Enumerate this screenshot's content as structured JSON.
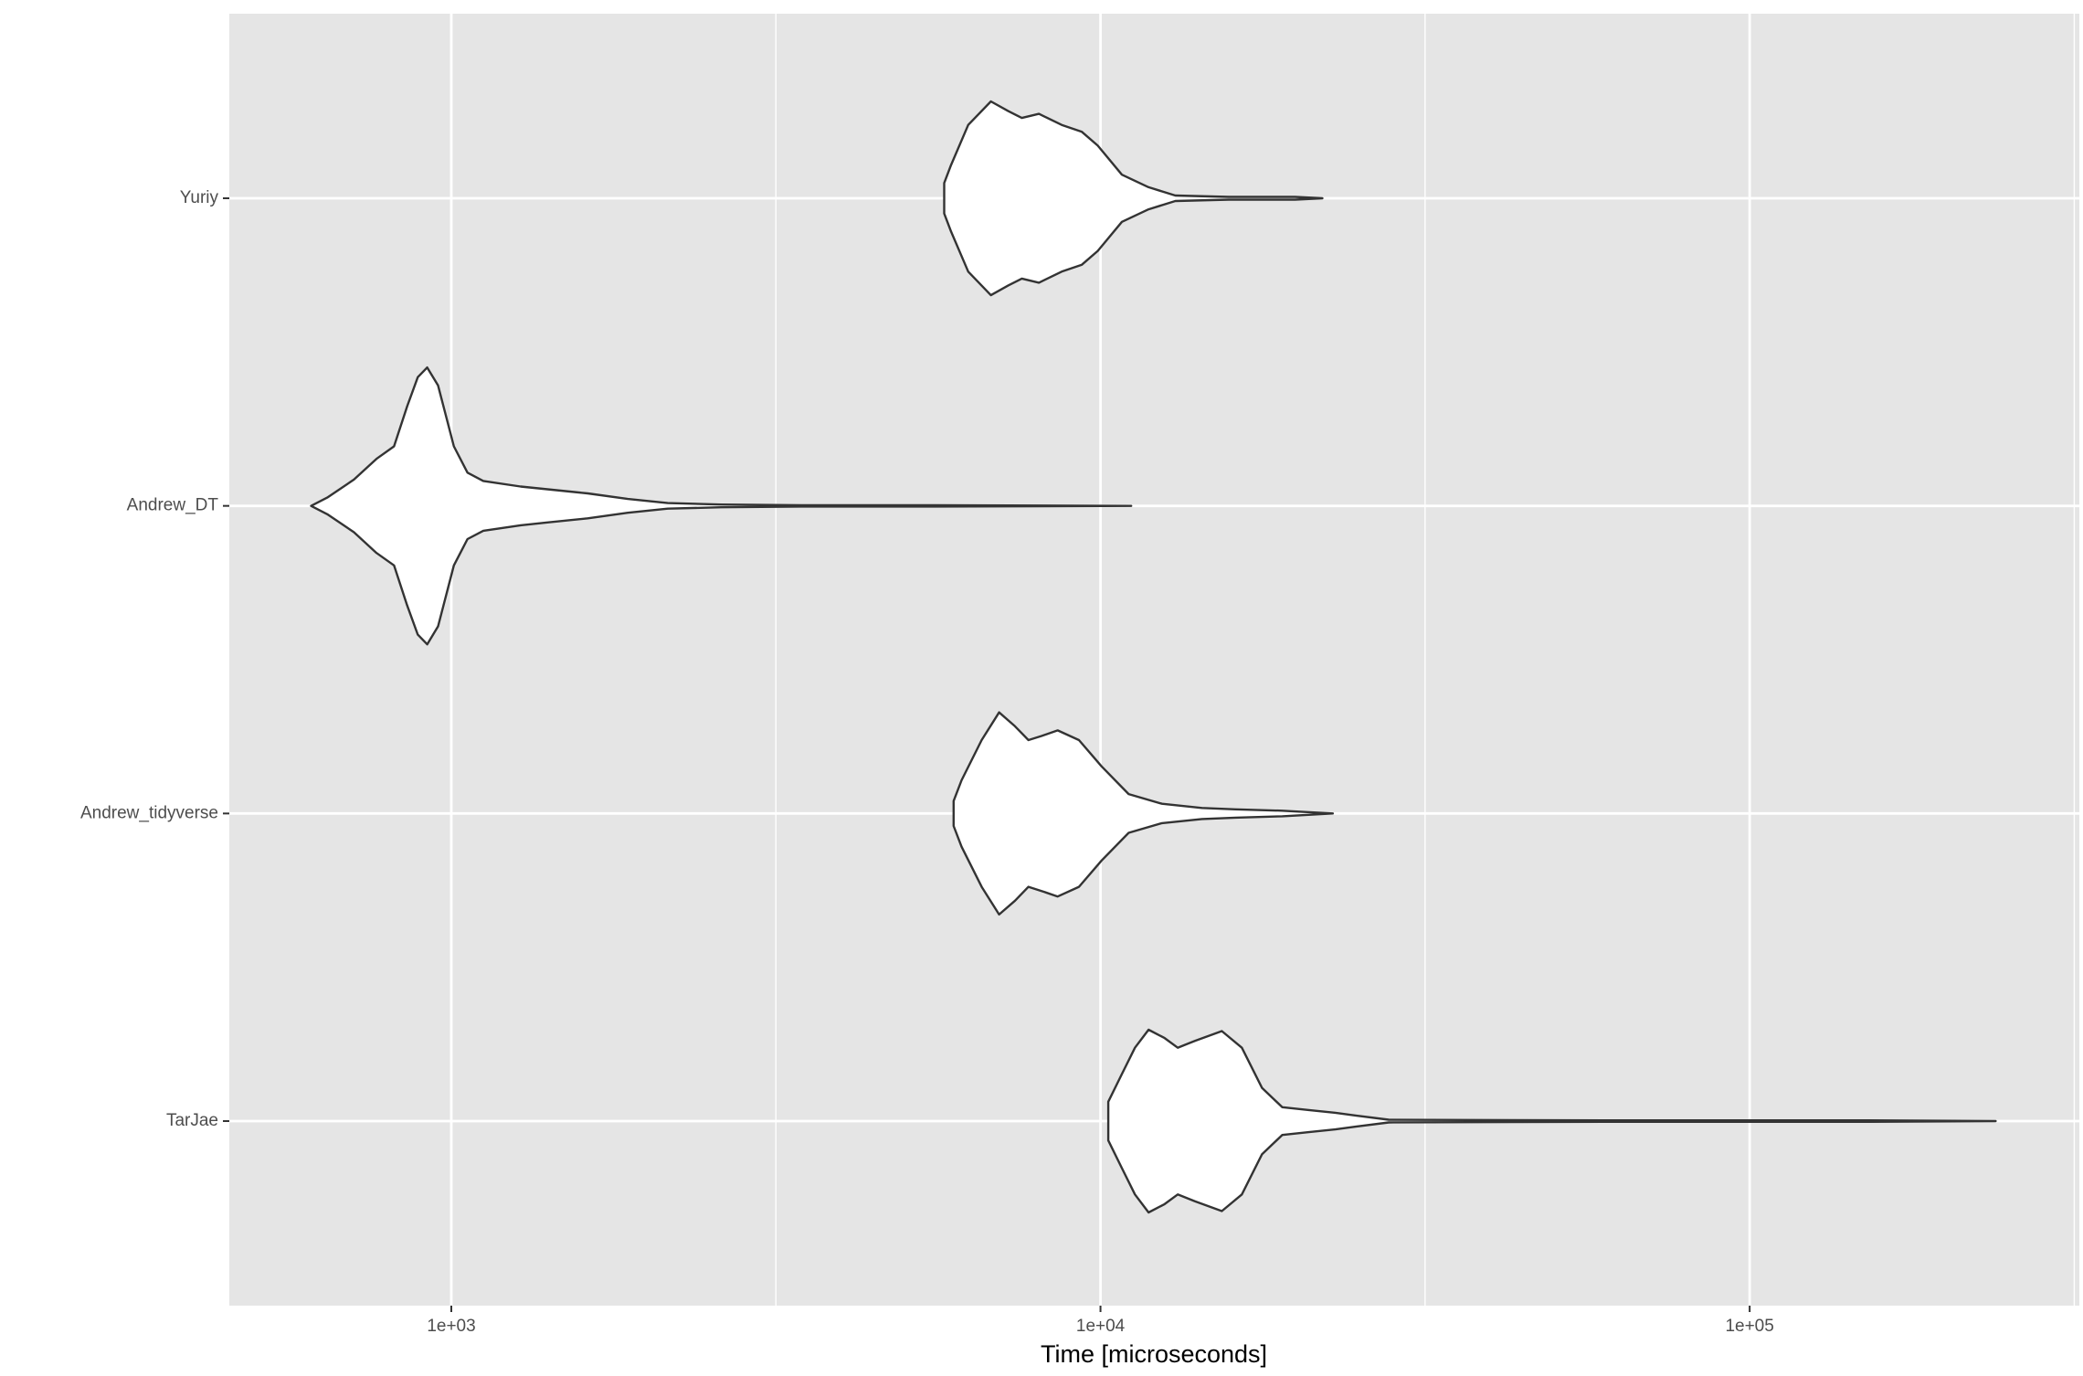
{
  "chart_data": {
    "type": "violin",
    "x_label": "Time [microseconds]",
    "categories": [
      "TarJae",
      "Andrew_tidyverse",
      "Andrew_DT",
      "Yuriy"
    ],
    "violins": [
      {
        "x": [
          10280,
          10790,
          11300,
          11860,
          12550,
          13150,
          13990,
          15380,
          16510,
          17730,
          19050,
          20940,
          23010,
          24720,
          27800,
          36980,
          59420,
          153100,
          239300
        ],
        "density": [
          0.14,
          0.34,
          0.53,
          0.66,
          0.6,
          0.53,
          0.58,
          0.65,
          0.53,
          0.24,
          0.1,
          0.08,
          0.06,
          0.04,
          0.01,
          0.008,
          0.005,
          0.005,
          0
        ]
      },
      {
        "x": [
          5940,
          6110,
          6560,
          6980,
          7385,
          7745,
          8115,
          8590,
          9265,
          10040,
          11050,
          12440,
          14330,
          16140,
          19050,
          22800
        ],
        "density": [
          0.09,
          0.24,
          0.53,
          0.73,
          0.63,
          0.53,
          0.56,
          0.6,
          0.53,
          0.34,
          0.14,
          0.07,
          0.04,
          0.03,
          0.02,
          0
        ]
      },
      {
        "x": [
          608,
          644,
          708,
          767,
          816,
          855,
          888,
          918,
          954,
          1009,
          1059,
          1120,
          1279,
          1406,
          1622,
          1870,
          2155,
          2605,
          3460,
          5555,
          11150
        ],
        "density": [
          0,
          0.06,
          0.19,
          0.34,
          0.43,
          0.72,
          0.93,
          1,
          0.87,
          0.43,
          0.24,
          0.18,
          0.14,
          0.12,
          0.09,
          0.05,
          0.02,
          0.01,
          0.005,
          0.005,
          0
        ]
      },
      {
        "x": [
          5745,
          5885,
          6255,
          6780,
          7210,
          7565,
          8040,
          8715,
          9360,
          9905,
          10790,
          11860,
          13040,
          15770,
          19950,
          21970
        ],
        "density": [
          0.11,
          0.24,
          0.53,
          0.7,
          0.63,
          0.58,
          0.61,
          0.53,
          0.48,
          0.38,
          0.17,
          0.08,
          0.02,
          0.01,
          0.01,
          0
        ]
      }
    ],
    "fill": "#ffffff",
    "stroke": "#333333",
    "background": "#e5e5e5",
    "xlog": true,
    "xlim": [
      455,
      322000
    ],
    "xticks": [
      {
        "value": 1000,
        "label": "1e+03"
      },
      {
        "value": 10000,
        "label": "1e+04"
      },
      {
        "value": 100000,
        "label": "1e+05"
      }
    ],
    "xminor": [
      3162,
      31623,
      316228
    ],
    "grid": true
  }
}
